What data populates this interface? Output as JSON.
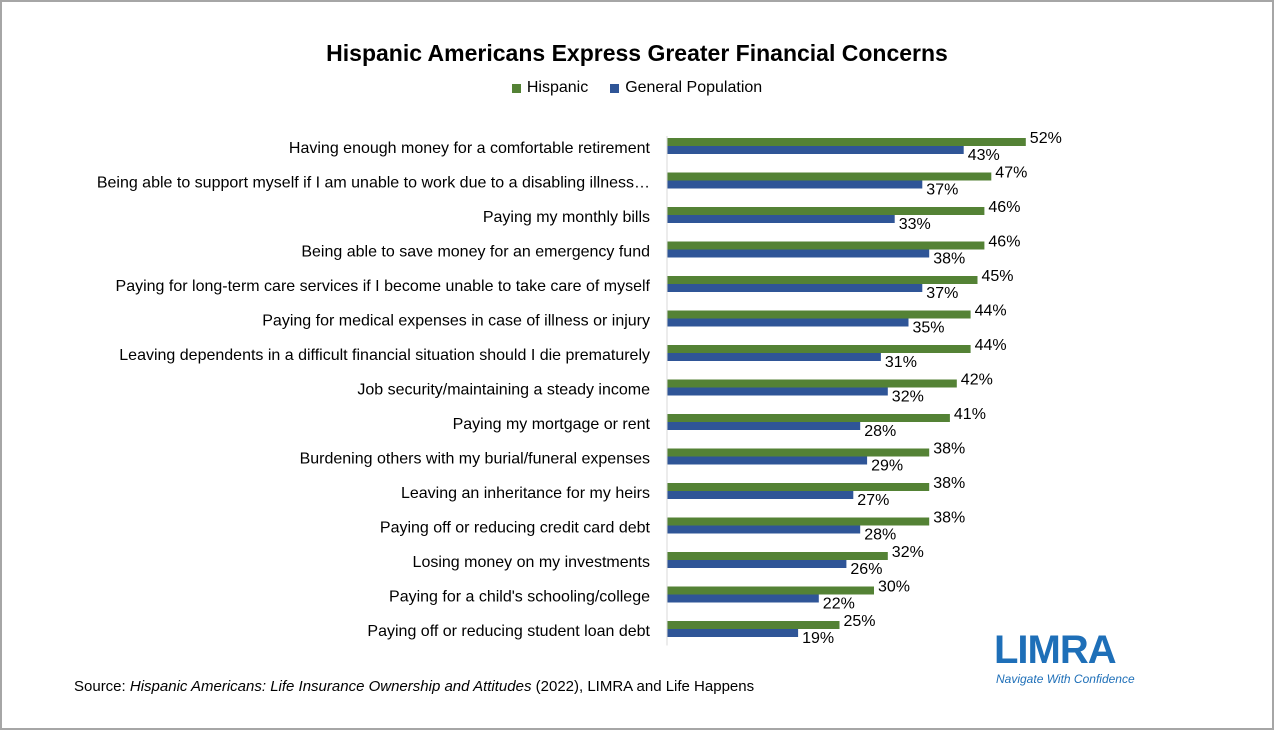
{
  "colors": {
    "hispanic": "#548235",
    "general": "#2f5597",
    "border": "#a6a6a6"
  },
  "legend": {
    "hispanic": "Hispanic",
    "general": "General Population"
  },
  "chart_data": {
    "type": "bar",
    "orientation": "horizontal",
    "title": "Hispanic Americans Express Greater Financial Concerns",
    "xlabel": "",
    "ylabel": "",
    "xlim": [
      0,
      60
    ],
    "grid": false,
    "legend_position": "top",
    "categories": [
      "Having enough money for a comfortable retirement",
      "Being able to support myself if I am unable to work due to a disabling illness…",
      "Paying my monthly bills",
      "Being able to save money for an emergency fund",
      "Paying for long-term care services if I become unable to take care of myself",
      "Paying for medical expenses in case of illness or injury",
      "Leaving dependents in a difficult financial situation should I die prematurely",
      "Job security/maintaining a steady income",
      "Paying my mortgage or rent",
      "Burdening others with my burial/funeral expenses",
      "Leaving an inheritance for my heirs ",
      "Paying off or reducing credit card debt",
      "Losing money on my investments",
      "Paying for a child's schooling/college",
      "Paying off or reducing student loan debt"
    ],
    "series": [
      {
        "name": "Hispanic",
        "values": [
          52,
          47,
          46,
          46,
          45,
          44,
          44,
          42,
          41,
          38,
          38,
          38,
          32,
          30,
          25
        ]
      },
      {
        "name": "General Population",
        "values": [
          43,
          37,
          33,
          38,
          37,
          35,
          31,
          32,
          28,
          29,
          27,
          28,
          26,
          22,
          19
        ]
      }
    ],
    "value_suffix": "%"
  },
  "source": {
    "prefix": "Source: ",
    "title": "Hispanic Americans: Life Insurance Ownership and Attitudes",
    "suffix": " (2022), LIMRA and Life Happens"
  },
  "logo": {
    "word": "LIMRA",
    "tagline": "Navigate With Confidence"
  }
}
